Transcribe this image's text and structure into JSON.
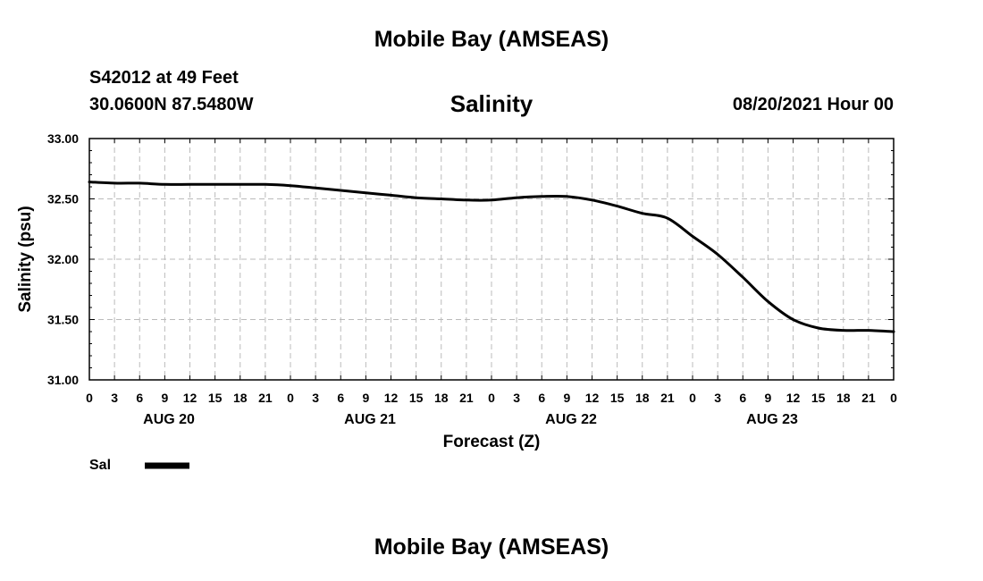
{
  "header": {
    "top_title": "Mobile Bay (AMSEAS)",
    "station": "S42012 at 49 Feet",
    "coords": "30.0600N  87.5480W",
    "chart_title": "Salinity",
    "run_time": "08/20/2021 Hour 00",
    "bottom_title": "Mobile Bay (AMSEAS)"
  },
  "chart_data": {
    "type": "line",
    "title": "Salinity",
    "xlabel": "Forecast (Z)",
    "ylabel": "Salinity (psu)",
    "ylim": [
      31.0,
      33.0
    ],
    "xlim": [
      0,
      96
    ],
    "x_units": "forecast hours from 08/20/2021 00Z",
    "x_tick_labels": [
      "0",
      "3",
      "6",
      "9",
      "12",
      "15",
      "18",
      "21",
      "0",
      "3",
      "6",
      "9",
      "12",
      "15",
      "18",
      "21",
      "0",
      "3",
      "6",
      "9",
      "12",
      "15",
      "18",
      "21",
      "0",
      "3",
      "6",
      "9",
      "12",
      "15",
      "18",
      "21",
      "0"
    ],
    "y_tick_labels": [
      "31.00",
      "31.50",
      "32.00",
      "32.50",
      "33.00"
    ],
    "day_labels": [
      "AUG 20",
      "AUG 21",
      "AUG 22",
      "AUG 23"
    ],
    "grid": true,
    "legend": [
      {
        "name": "Sal",
        "color": "#000000"
      }
    ],
    "series": [
      {
        "name": "Sal",
        "color": "#000000",
        "x": [
          0,
          3,
          6,
          9,
          12,
          15,
          18,
          21,
          24,
          27,
          30,
          33,
          36,
          39,
          42,
          45,
          48,
          51,
          54,
          57,
          60,
          63,
          66,
          69,
          72,
          75,
          78,
          81,
          84,
          87,
          90,
          93,
          96
        ],
        "y": [
          32.64,
          32.63,
          32.63,
          32.62,
          32.62,
          32.62,
          32.62,
          32.62,
          32.61,
          32.59,
          32.57,
          32.55,
          32.53,
          32.51,
          32.5,
          32.49,
          32.49,
          32.51,
          32.52,
          32.52,
          32.49,
          32.44,
          32.38,
          32.34,
          32.19,
          32.04,
          31.85,
          31.65,
          31.5,
          31.43,
          31.41,
          31.41,
          31.4
        ]
      }
    ]
  }
}
